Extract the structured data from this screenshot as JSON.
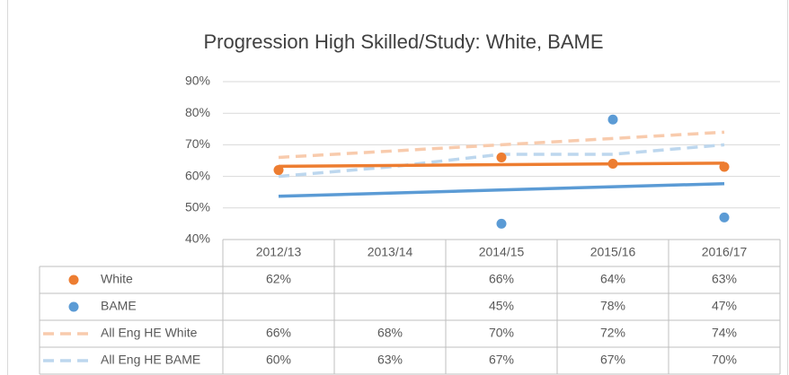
{
  "chart_data": {
    "type": "line",
    "title": "Progression High Skilled/Study: White, BAME",
    "categories": [
      "2012/13",
      "2013/14",
      "2014/15",
      "2015/16",
      "2016/17"
    ],
    "ylim": [
      40,
      90
    ],
    "yticks": [
      {
        "value": 40,
        "label": "40%"
      },
      {
        "value": 50,
        "label": "50%"
      },
      {
        "value": 60,
        "label": "60%"
      },
      {
        "value": 70,
        "label": "70%"
      },
      {
        "value": 80,
        "label": "80%"
      },
      {
        "value": 90,
        "label": "90%"
      }
    ],
    "grid": true,
    "series": [
      {
        "name": "White",
        "color": "#ed7d31",
        "style": "markers",
        "values": [
          62,
          null,
          66,
          64,
          63
        ],
        "value_labels": [
          "62%",
          null,
          "66%",
          "64%",
          "63%"
        ],
        "trendline": [
          63.2,
          64.2
        ]
      },
      {
        "name": "BAME",
        "color": "#5b9bd5",
        "style": "markers",
        "values": [
          null,
          null,
          45,
          78,
          47
        ],
        "value_labels": [
          null,
          null,
          "45%",
          "78%",
          "47%"
        ],
        "trendline": [
          53.7,
          57.7
        ]
      },
      {
        "name": "All Eng HE White",
        "color": "#f8cbad",
        "style": "dashed",
        "values": [
          66,
          68,
          70,
          72,
          74
        ],
        "value_labels": [
          "66%",
          "68%",
          "70%",
          "72%",
          "74%"
        ]
      },
      {
        "name": "All Eng HE BAME",
        "color": "#bdd7ee",
        "style": "dashed",
        "values": [
          60,
          63,
          67,
          67,
          70
        ],
        "value_labels": [
          "60%",
          "63%",
          "67%",
          "67%",
          "70%"
        ]
      }
    ]
  }
}
